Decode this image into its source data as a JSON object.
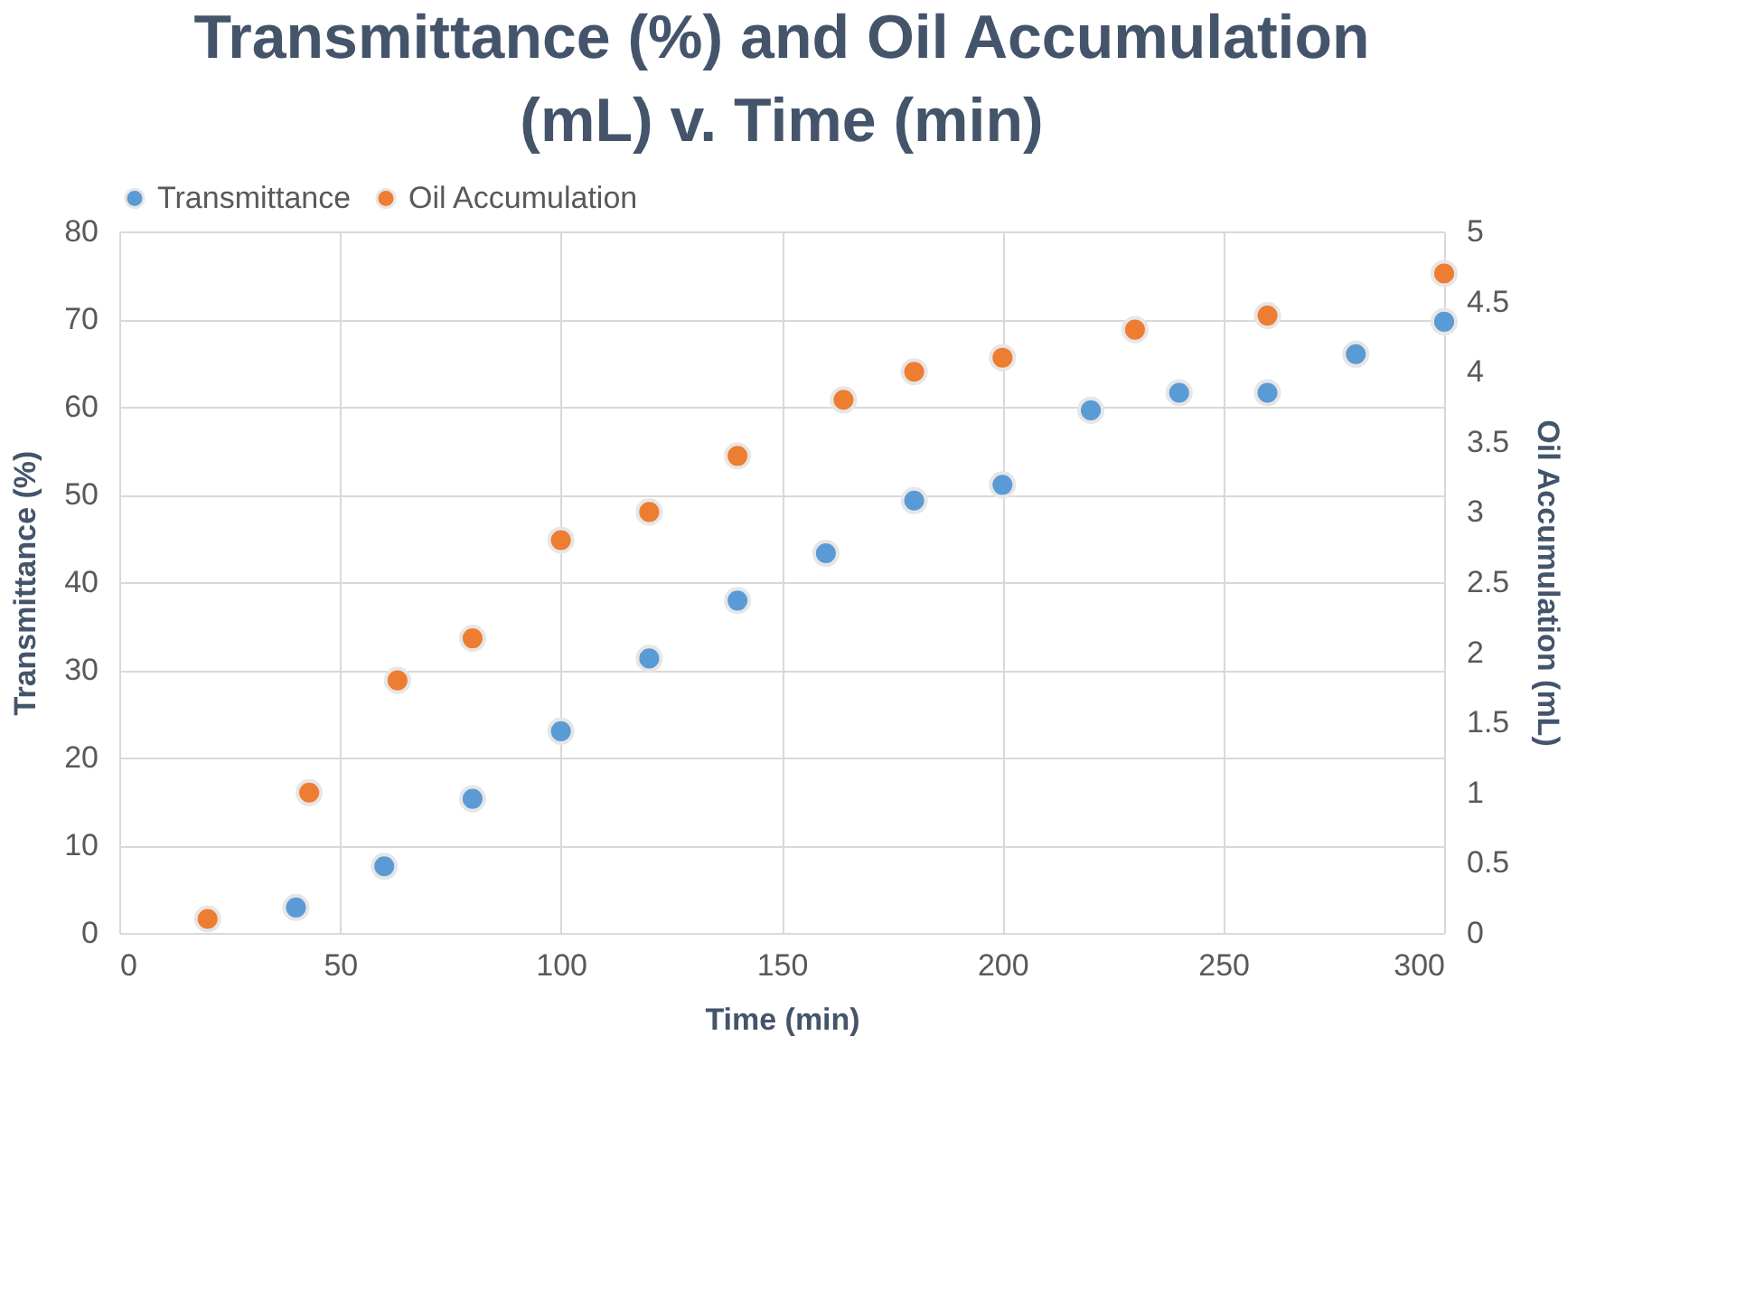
{
  "chart_data": {
    "type": "scatter",
    "title": "Transmittance (%) and Oil Accumulation (mL)  v.  Time (min)",
    "xlabel": "Time (min)",
    "ylabel": "Transmittance (%)",
    "y2label": "Oil Accumulation (mL)",
    "series": [
      {
        "name": "Transmittance",
        "color": "#5b9bd5",
        "x": [
          40,
          60,
          80,
          100,
          120,
          140,
          160,
          180,
          200,
          220,
          240,
          260,
          280,
          300
        ],
        "values": [
          2.9,
          7.6,
          15.3,
          23,
          31.3,
          37.9,
          43.3,
          49.3,
          51.1,
          59.6,
          61.6,
          61.6,
          66,
          69.7
        ]
      },
      {
        "name": "Oil Accumulation",
        "color": "#ed7d31",
        "axis": "y2",
        "x": [
          20,
          43,
          63,
          80,
          100,
          120,
          140,
          164,
          180,
          200,
          230,
          260,
          300
        ],
        "values": [
          0.1,
          1.0,
          1.8,
          2.1,
          2.8,
          3.0,
          3.4,
          3.8,
          4.0,
          4.1,
          4.3,
          4.4,
          4.7
        ]
      }
    ],
    "xlim": [
      0,
      300
    ],
    "xticks": [
      0,
      50,
      100,
      150,
      200,
      250,
      300
    ],
    "ylim": [
      0,
      80
    ],
    "yticks": [
      0,
      10,
      20,
      30,
      40,
      50,
      60,
      70,
      80
    ],
    "y2lim": [
      0,
      5
    ],
    "y2ticks": [
      0,
      0.5,
      1,
      1.5,
      2,
      2.5,
      3,
      3.5,
      4,
      4.5,
      5
    ],
    "grid": true,
    "legend": "top",
    "marker": "circle"
  }
}
